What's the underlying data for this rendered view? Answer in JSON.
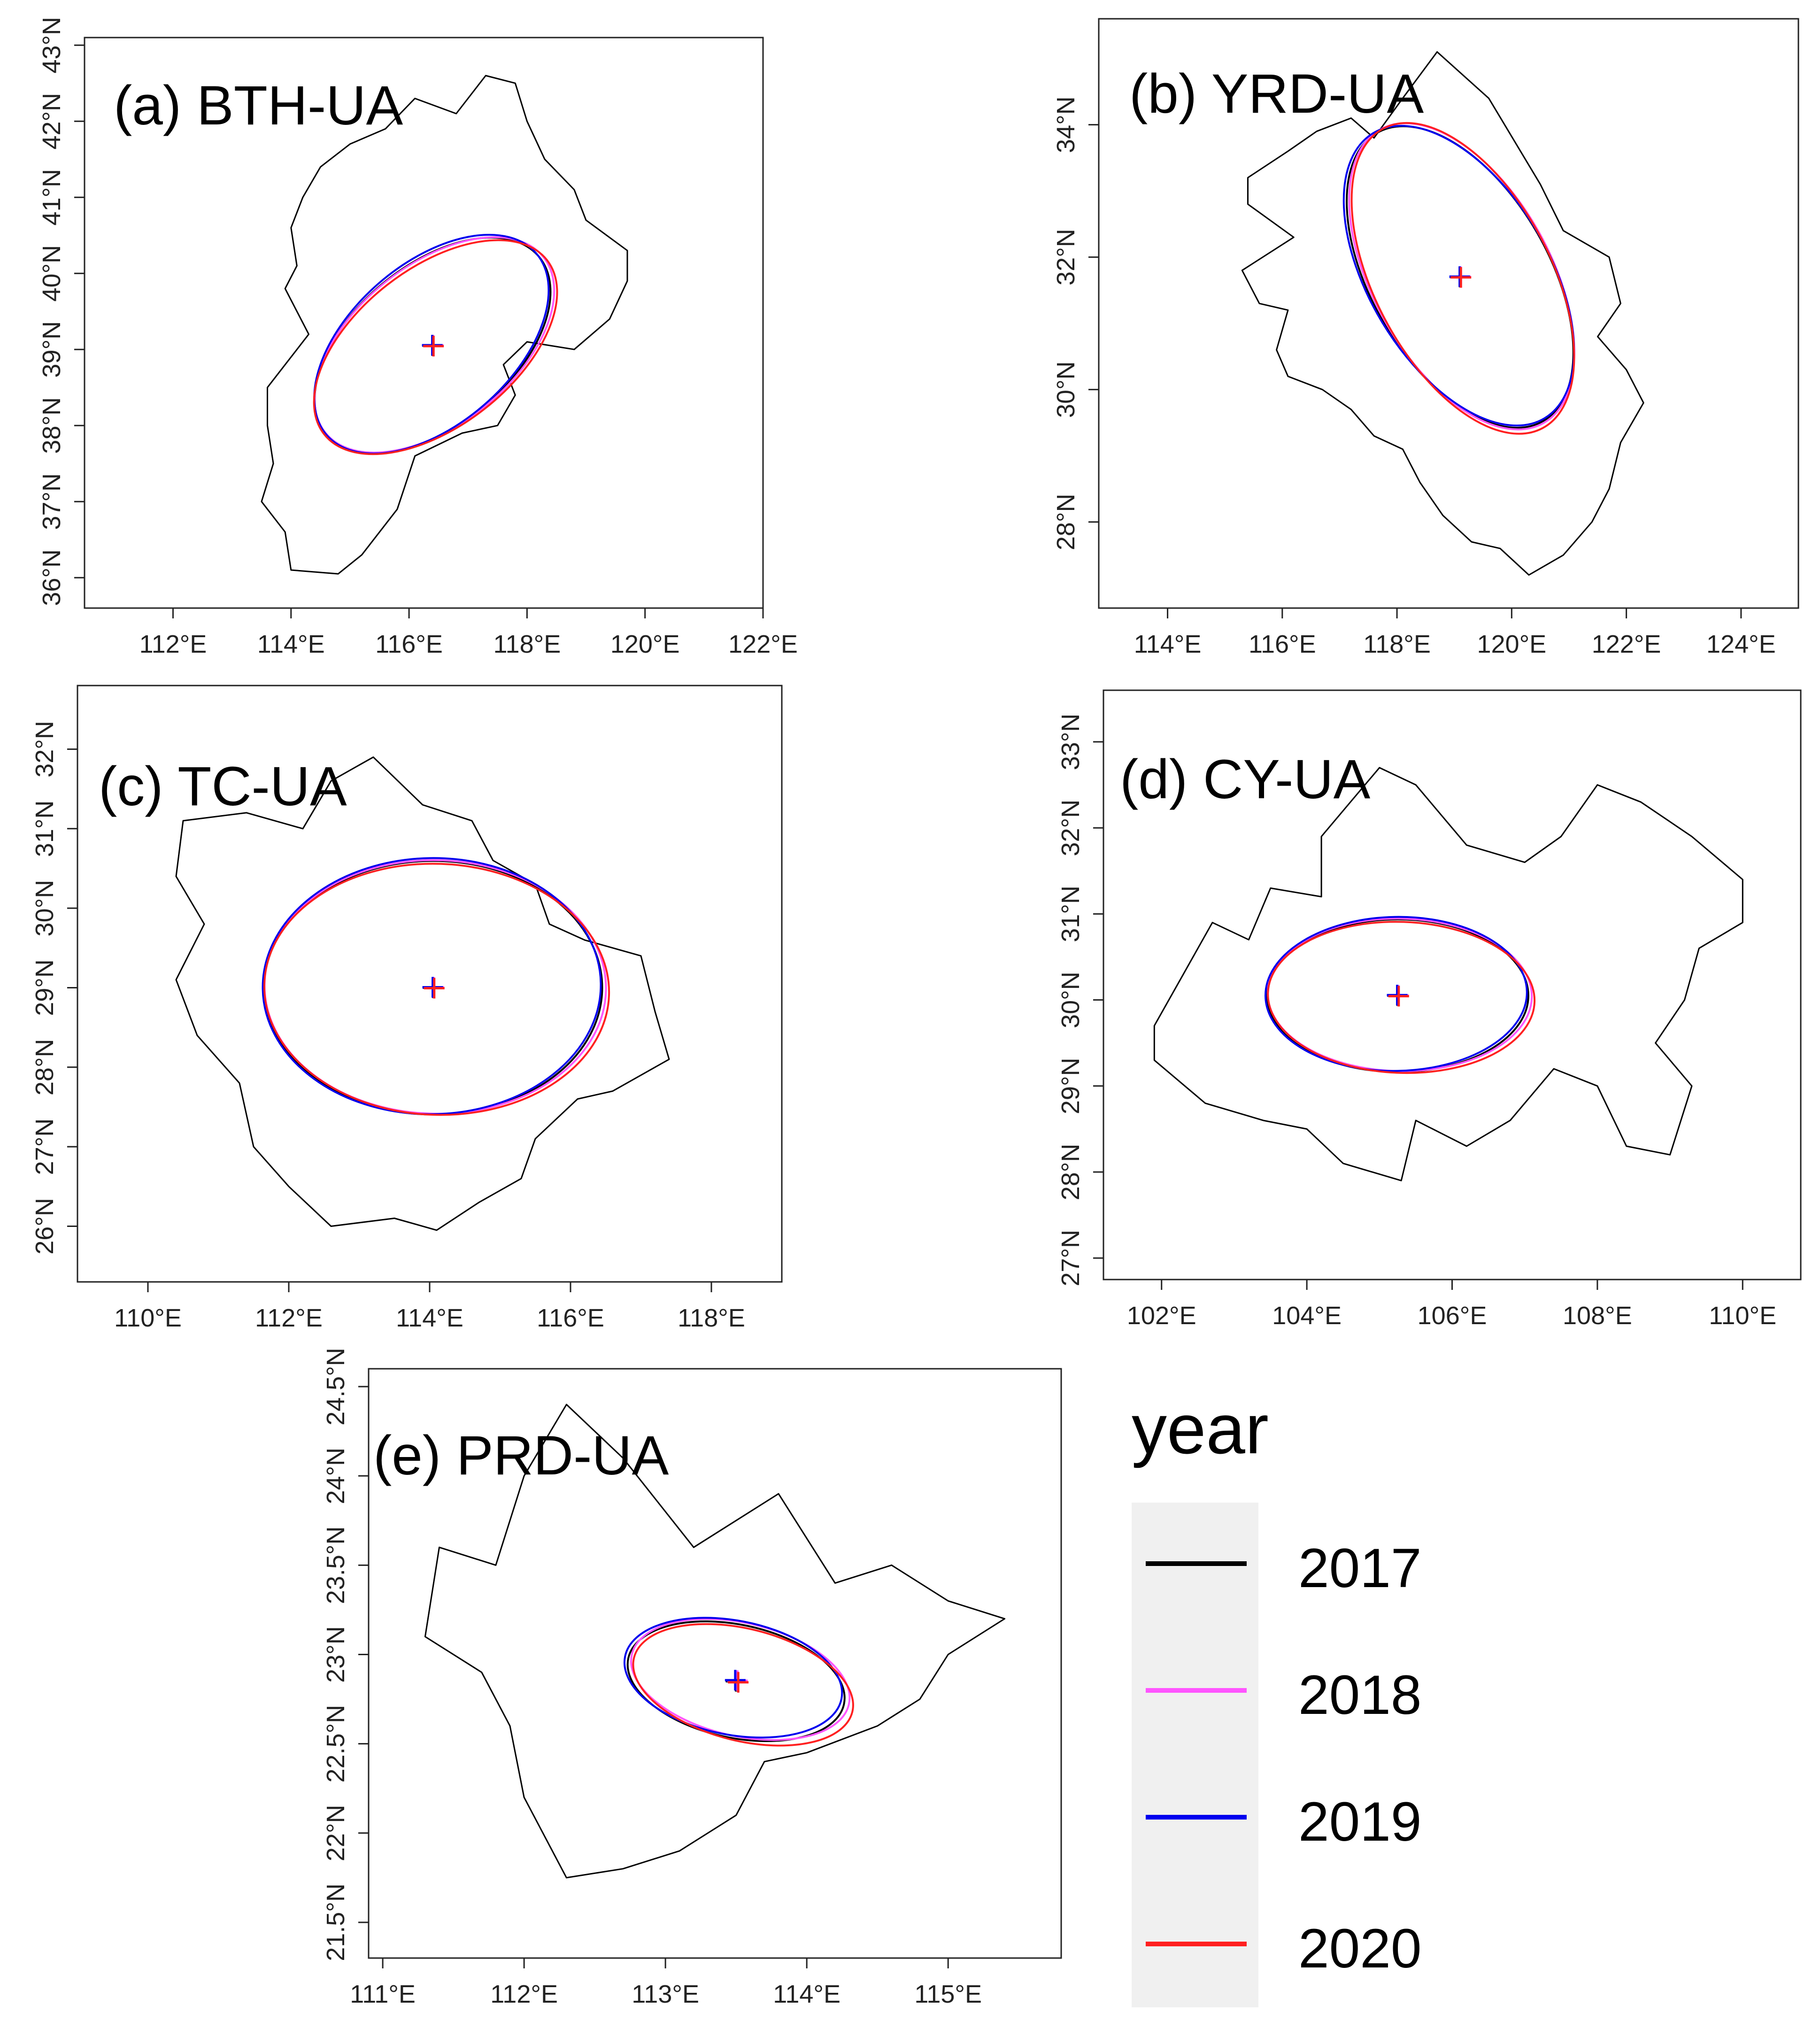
{
  "chart_data": {
    "type": "map-ellipses",
    "legend": {
      "title": "year",
      "entries": [
        {
          "label": "2017",
          "color": "#000000"
        },
        {
          "label": "2018",
          "color": "#ff55ff"
        },
        {
          "label": "2019",
          "color": "#0000ee"
        },
        {
          "label": "2020",
          "color": "#ff2020"
        }
      ]
    },
    "panels": [
      {
        "id": "bth",
        "title": "(a) BTH-UA",
        "xlim": [
          110.5,
          122.0
        ],
        "ylim": [
          35.6,
          43.1
        ],
        "x_ticks": [
          112,
          114,
          116,
          118,
          120,
          122
        ],
        "x_tick_labels": [
          "112°E",
          "114°E",
          "116°E",
          "118°E",
          "120°E",
          "122°E"
        ],
        "y_ticks": [
          36,
          37,
          38,
          39,
          40,
          41,
          42,
          43
        ],
        "y_tick_labels": [
          "36°N",
          "37°N",
          "38°N",
          "39°N",
          "40°N",
          "41°N",
          "42°N",
          "43°N"
        ],
        "center": [
          116.4,
          39.05
        ],
        "ellipse": {
          "semi_major_deg": 2.35,
          "semi_minor_deg": 1.35,
          "rotation_deg": 40
        },
        "outline": [
          [
            114.0,
            36.1
          ],
          [
            114.8,
            36.05
          ],
          [
            115.2,
            36.3
          ],
          [
            115.8,
            36.9
          ],
          [
            116.1,
            37.6
          ],
          [
            116.9,
            37.9
          ],
          [
            117.5,
            38.0
          ],
          [
            117.8,
            38.4
          ],
          [
            117.6,
            38.8
          ],
          [
            118.0,
            39.1
          ],
          [
            118.8,
            39.0
          ],
          [
            119.4,
            39.4
          ],
          [
            119.7,
            39.9
          ],
          [
            119.7,
            40.3
          ],
          [
            119.0,
            40.7
          ],
          [
            118.8,
            41.1
          ],
          [
            118.3,
            41.5
          ],
          [
            118.0,
            42.0
          ],
          [
            117.8,
            42.5
          ],
          [
            117.3,
            42.6
          ],
          [
            116.8,
            42.1
          ],
          [
            116.1,
            42.3
          ],
          [
            115.6,
            41.9
          ],
          [
            115.0,
            41.7
          ],
          [
            114.5,
            41.4
          ],
          [
            114.2,
            41.0
          ],
          [
            114.0,
            40.6
          ],
          [
            114.1,
            40.1
          ],
          [
            113.9,
            39.8
          ],
          [
            114.3,
            39.2
          ],
          [
            114.0,
            38.9
          ],
          [
            113.6,
            38.5
          ],
          [
            113.6,
            38.0
          ],
          [
            113.7,
            37.5
          ],
          [
            113.5,
            37.0
          ],
          [
            113.9,
            36.6
          ],
          [
            114.0,
            36.1
          ]
        ]
      },
      {
        "id": "yrd",
        "title": "(b) YRD-UA",
        "xlim": [
          112.8,
          125.0
        ],
        "ylim": [
          26.7,
          35.6
        ],
        "x_ticks": [
          114,
          116,
          118,
          120,
          122,
          124
        ],
        "x_tick_labels": [
          "114°E",
          "116°E",
          "118°E",
          "120°E",
          "122°E",
          "124°E"
        ],
        "y_ticks": [
          28,
          30,
          32,
          34
        ],
        "y_tick_labels": [
          "28°N",
          "30°N",
          "32°N",
          "34°N"
        ],
        "center": [
          119.1,
          31.7
        ],
        "ellipse": {
          "semi_major_deg": 2.9,
          "semi_minor_deg": 1.55,
          "rotation_deg": -60
        },
        "outline": [
          [
            118.7,
            35.1
          ],
          [
            119.6,
            34.4
          ],
          [
            120.5,
            33.1
          ],
          [
            120.9,
            32.4
          ],
          [
            121.7,
            32.0
          ],
          [
            121.9,
            31.3
          ],
          [
            121.5,
            30.8
          ],
          [
            122.0,
            30.3
          ],
          [
            122.3,
            29.8
          ],
          [
            121.9,
            29.2
          ],
          [
            121.7,
            28.5
          ],
          [
            121.4,
            28.0
          ],
          [
            120.9,
            27.5
          ],
          [
            120.3,
            27.2
          ],
          [
            119.8,
            27.6
          ],
          [
            119.3,
            27.7
          ],
          [
            118.8,
            28.1
          ],
          [
            118.4,
            28.6
          ],
          [
            118.1,
            29.1
          ],
          [
            117.6,
            29.3
          ],
          [
            117.2,
            29.7
          ],
          [
            116.7,
            30.0
          ],
          [
            116.1,
            30.2
          ],
          [
            115.9,
            30.6
          ],
          [
            116.1,
            31.2
          ],
          [
            115.6,
            31.3
          ],
          [
            115.3,
            31.8
          ],
          [
            116.2,
            32.3
          ],
          [
            115.4,
            32.8
          ],
          [
            115.4,
            33.2
          ],
          [
            116.1,
            33.6
          ],
          [
            116.6,
            33.9
          ],
          [
            117.2,
            34.1
          ],
          [
            117.6,
            33.8
          ],
          [
            118.1,
            34.4
          ],
          [
            118.7,
            35.1
          ]
        ]
      },
      {
        "id": "tc",
        "title": "(c) TC-UA",
        "xlim": [
          109.0,
          119.0
        ],
        "ylim": [
          25.3,
          32.8
        ],
        "x_ticks": [
          110,
          112,
          114,
          116,
          118
        ],
        "x_tick_labels": [
          "110°E",
          "112°E",
          "114°E",
          "116°E",
          "118°E"
        ],
        "y_ticks": [
          26,
          27,
          28,
          29,
          30,
          31,
          32
        ],
        "y_tick_labels": [
          "26°N",
          "27°N",
          "28°N",
          "29°N",
          "30°N",
          "31°N",
          "32°N"
        ],
        "center": [
          114.05,
          29.0
        ],
        "ellipse": {
          "semi_major_deg": 2.4,
          "semi_minor_deg": 1.8,
          "rotation_deg": 0
        },
        "outline": [
          [
            114.1,
            25.95
          ],
          [
            114.7,
            26.3
          ],
          [
            115.3,
            26.6
          ],
          [
            115.5,
            27.1
          ],
          [
            116.1,
            27.6
          ],
          [
            116.6,
            27.7
          ],
          [
            117.4,
            28.1
          ],
          [
            117.2,
            28.7
          ],
          [
            117.0,
            29.4
          ],
          [
            116.2,
            29.6
          ],
          [
            115.7,
            29.8
          ],
          [
            115.5,
            30.3
          ],
          [
            114.9,
            30.6
          ],
          [
            114.6,
            31.1
          ],
          [
            113.9,
            31.3
          ],
          [
            113.2,
            31.9
          ],
          [
            112.6,
            31.6
          ],
          [
            112.2,
            31.0
          ],
          [
            111.4,
            31.2
          ],
          [
            110.5,
            31.1
          ],
          [
            110.4,
            30.4
          ],
          [
            110.8,
            29.8
          ],
          [
            110.4,
            29.1
          ],
          [
            110.7,
            28.4
          ],
          [
            111.3,
            27.8
          ],
          [
            111.5,
            27.0
          ],
          [
            112.0,
            26.5
          ],
          [
            112.6,
            26.0
          ],
          [
            113.5,
            26.1
          ],
          [
            114.1,
            25.95
          ]
        ]
      },
      {
        "id": "cy",
        "title": "(d) CY-UA",
        "xlim": [
          101.2,
          110.8
        ],
        "ylim": [
          26.75,
          33.6
        ],
        "x_ticks": [
          102,
          104,
          106,
          108,
          110
        ],
        "x_tick_labels": [
          "102°E",
          "104°E",
          "106°E",
          "108°E",
          "110°E"
        ],
        "y_ticks": [
          27,
          28,
          29,
          30,
          31,
          32,
          33
        ],
        "y_tick_labels": [
          "27°N",
          "28°N",
          "29°N",
          "30°N",
          "31°N",
          "32°N",
          "33°N"
        ],
        "center": [
          105.25,
          30.05
        ],
        "ellipse": {
          "semi_major_deg": 1.8,
          "semi_minor_deg": 1.05,
          "rotation_deg": 0
        },
        "outline": [
          [
            104.6,
            32.3
          ],
          [
            105.0,
            32.7
          ],
          [
            105.5,
            32.5
          ],
          [
            106.2,
            31.8
          ],
          [
            107.0,
            31.6
          ],
          [
            107.5,
            31.9
          ],
          [
            108.0,
            32.5
          ],
          [
            108.6,
            32.3
          ],
          [
            109.3,
            31.9
          ],
          [
            110.0,
            31.4
          ],
          [
            110.0,
            30.9
          ],
          [
            109.4,
            30.6
          ],
          [
            109.2,
            30.0
          ],
          [
            108.8,
            29.5
          ],
          [
            109.3,
            29.0
          ],
          [
            109.0,
            28.2
          ],
          [
            108.4,
            28.3
          ],
          [
            108.0,
            29.0
          ],
          [
            107.4,
            29.2
          ],
          [
            106.8,
            28.6
          ],
          [
            106.2,
            28.3
          ],
          [
            105.5,
            28.6
          ],
          [
            105.3,
            27.9
          ],
          [
            104.5,
            28.1
          ],
          [
            104.0,
            28.5
          ],
          [
            103.4,
            28.6
          ],
          [
            102.6,
            28.8
          ],
          [
            101.9,
            29.3
          ],
          [
            101.9,
            29.7
          ],
          [
            102.3,
            30.3
          ],
          [
            102.7,
            30.9
          ],
          [
            103.2,
            30.7
          ],
          [
            103.5,
            31.3
          ],
          [
            104.2,
            31.2
          ],
          [
            104.2,
            31.9
          ],
          [
            104.6,
            32.3
          ]
        ]
      },
      {
        "id": "prd",
        "title": "(e) PRD-UA",
        "xlim": [
          110.9,
          115.8
        ],
        "ylim": [
          21.3,
          24.6
        ],
        "x_ticks": [
          111,
          112,
          113,
          114,
          115
        ],
        "x_tick_labels": [
          "111°E",
          "112°E",
          "113°E",
          "114°E",
          "115°E"
        ],
        "y_ticks": [
          21.5,
          22,
          22.5,
          23,
          23.5,
          24,
          24.5
        ],
        "y_tick_labels": [
          "21.5°N",
          "22°N",
          "22.5°N",
          "23°N",
          "23.5°N",
          "24°N",
          "24.5°N"
        ],
        "center": [
          113.5,
          22.85
        ],
        "ellipse": {
          "semi_major_deg": 0.78,
          "semi_minor_deg": 0.4,
          "rotation_deg": -12
        },
        "outline": [
          [
            112.3,
            21.75
          ],
          [
            112.7,
            21.8
          ],
          [
            113.1,
            21.9
          ],
          [
            113.5,
            22.1
          ],
          [
            113.7,
            22.4
          ],
          [
            114.0,
            22.45
          ],
          [
            114.5,
            22.6
          ],
          [
            114.8,
            22.75
          ],
          [
            115.0,
            23.0
          ],
          [
            115.4,
            23.2
          ],
          [
            115.0,
            23.3
          ],
          [
            114.6,
            23.5
          ],
          [
            114.2,
            23.4
          ],
          [
            113.8,
            23.9
          ],
          [
            113.2,
            23.6
          ],
          [
            112.7,
            24.1
          ],
          [
            112.3,
            24.4
          ],
          [
            112.0,
            24.0
          ],
          [
            111.8,
            23.5
          ],
          [
            111.4,
            23.6
          ],
          [
            111.3,
            23.1
          ],
          [
            111.7,
            22.9
          ],
          [
            111.9,
            22.6
          ],
          [
            112.0,
            22.2
          ],
          [
            112.3,
            21.75
          ]
        ]
      }
    ]
  }
}
